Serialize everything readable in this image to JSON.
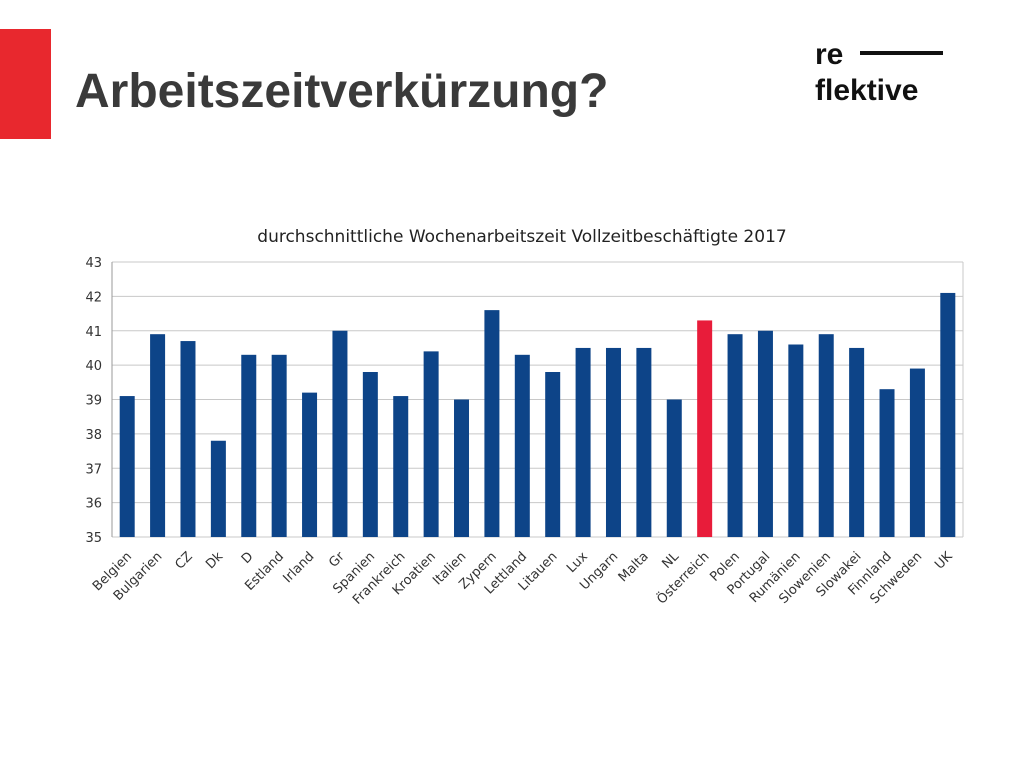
{
  "slide": {
    "title": "Arbeitszeitverkürzung?",
    "accent_color": "#e8282e"
  },
  "logo": {
    "line1": "re",
    "line2": "flektive"
  },
  "chart_data": {
    "type": "bar",
    "title": "durchschnittliche Wochenarbeitszeit Vollzeitbeschäftigte 2017",
    "xlabel": "",
    "ylabel": "",
    "ylim": [
      35,
      43
    ],
    "yticks": [
      35,
      36,
      37,
      38,
      39,
      40,
      41,
      42,
      43
    ],
    "grid": true,
    "legend": "none",
    "bar_color": "#0d4488",
    "highlight_color": "#e81c3a",
    "highlight_category": "Österreich",
    "categories": [
      "Belgien",
      "Bulgarien",
      "CZ",
      "Dk",
      "D",
      "Estland",
      "Irland",
      "Gr",
      "Spanien",
      "Frankreich",
      "Kroatien",
      "Italien",
      "Zypern",
      "Lettland",
      "Litauen",
      "Lux",
      "Ungarn",
      "Malta",
      "NL",
      "Österreich",
      "Polen",
      "Portugal",
      "Rumänien",
      "Slowenien",
      "Slowakei",
      "Finnland",
      "Schweden",
      "UK"
    ],
    "values": [
      39.1,
      40.9,
      40.7,
      37.8,
      40.3,
      40.3,
      39.2,
      41.0,
      39.8,
      39.1,
      40.4,
      39.0,
      41.6,
      40.3,
      39.8,
      40.5,
      40.5,
      40.5,
      39.0,
      41.3,
      40.9,
      41.0,
      40.6,
      40.9,
      40.5,
      39.3,
      39.9,
      42.1
    ]
  }
}
